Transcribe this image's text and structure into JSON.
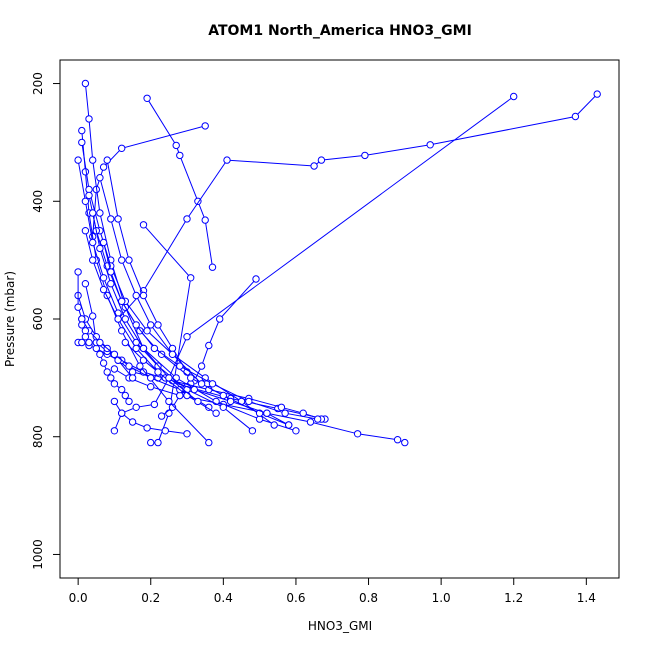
{
  "chart_data": {
    "type": "line",
    "title": "ATOM1 North_America HNO3_GMI",
    "xlabel": "HNO3_GMI",
    "ylabel": "Pressure (mbar)",
    "xlim": [
      -0.05,
      1.49
    ],
    "ylim": [
      1040,
      160
    ],
    "y_reversed": true,
    "x_ticks": [
      0.0,
      0.2,
      0.4,
      0.6,
      0.8,
      1.0,
      1.2,
      1.4
    ],
    "x_tick_labels": [
      "0.0",
      "0.2",
      "0.4",
      "0.6",
      "0.8",
      "1.0",
      "1.2",
      "1.4"
    ],
    "y_ticks": [
      200,
      400,
      600,
      800,
      1000
    ],
    "y_tick_labels": [
      "200",
      "400",
      "600",
      "800",
      "1000"
    ],
    "grid": false,
    "line_color": "#0000ff",
    "marker": "open-circle",
    "series": [
      {
        "x": [
          0.18,
          0.31,
          0.25,
          0.22,
          0.2
        ],
        "y": [
          440,
          530,
          760,
          810,
          810
        ]
      },
      {
        "x": [
          0.19,
          0.27,
          0.28,
          0.33,
          0.35,
          0.37
        ],
        "y": [
          225,
          305,
          322,
          400,
          432,
          512
        ]
      },
      {
        "x": [
          1.43,
          1.37,
          0.97,
          0.79,
          0.67,
          0.65,
          0.41,
          0.3,
          0.18,
          0.11
        ],
        "y": [
          218,
          256,
          304,
          322,
          330,
          340,
          330,
          430,
          552,
          600
        ]
      },
      {
        "x": [
          1.2,
          0.3,
          0.25,
          0.21,
          0.16,
          0.12,
          0.1
        ],
        "y": [
          222,
          630,
          700,
          745,
          750,
          760,
          790
        ]
      },
      {
        "x": [
          0.35,
          0.12,
          0.07,
          0.05,
          0.04
        ],
        "y": [
          272,
          310,
          342,
          380,
          460
        ]
      },
      {
        "x": [
          0.49,
          0.39,
          0.36,
          0.34,
          0.32,
          0.31,
          0.28,
          0.26,
          0.23
        ],
        "y": [
          532,
          600,
          645,
          680,
          705,
          710,
          730,
          750,
          765
        ]
      },
      {
        "x": [
          0.02,
          0.04,
          0.05,
          0.06,
          0.07,
          0.08,
          0.09,
          0.1,
          0.12,
          0.13,
          0.14
        ],
        "y": [
          540,
          595,
          640,
          660,
          675,
          690,
          700,
          710,
          720,
          730,
          740
        ]
      },
      {
        "x": [
          0.0,
          0.01,
          0.03,
          0.05,
          0.08,
          0.11,
          0.15,
          0.22,
          0.3,
          0.42,
          0.55,
          0.68
        ],
        "y": [
          640,
          640,
          645,
          650,
          660,
          670,
          690,
          700,
          715,
          735,
          752,
          770
        ]
      },
      {
        "x": [
          0.05,
          0.08,
          0.12,
          0.18,
          0.26,
          0.36,
          0.47,
          0.56,
          0.62,
          0.67
        ],
        "y": [
          640,
          655,
          670,
          690,
          705,
          720,
          735,
          750,
          760,
          770
        ]
      },
      {
        "x": [
          0.1,
          0.14,
          0.2,
          0.28,
          0.4,
          0.52,
          0.64,
          0.77,
          0.88,
          0.9
        ],
        "y": [
          685,
          700,
          715,
          730,
          745,
          760,
          775,
          795,
          805,
          810
        ]
      },
      {
        "x": [
          0.02,
          0.03,
          0.04,
          0.06,
          0.09,
          0.13,
          0.18,
          0.27,
          0.38,
          0.5,
          0.6
        ],
        "y": [
          200,
          260,
          330,
          420,
          500,
          580,
          650,
          700,
          740,
          770,
          790
        ]
      },
      {
        "x": [
          0.01,
          0.02,
          0.03,
          0.05,
          0.08,
          0.12,
          0.17,
          0.25,
          0.36
        ],
        "y": [
          280,
          350,
          420,
          500,
          560,
          620,
          680,
          740,
          810
        ]
      },
      {
        "x": [
          0.0,
          0.02,
          0.04,
          0.07,
          0.11,
          0.16,
          0.22,
          0.3,
          0.4,
          0.48
        ],
        "y": [
          330,
          400,
          470,
          530,
          590,
          640,
          680,
          720,
          750,
          790
        ]
      },
      {
        "x": [
          0.01,
          0.03,
          0.06,
          0.09,
          0.13,
          0.19,
          0.26,
          0.35,
          0.45,
          0.54
        ],
        "y": [
          300,
          380,
          450,
          510,
          570,
          620,
          660,
          700,
          740,
          780
        ]
      },
      {
        "x": [
          0.0,
          0.02,
          0.05,
          0.08,
          0.11,
          0.15
        ],
        "y": [
          560,
          600,
          630,
          650,
          670,
          700
        ]
      },
      {
        "x": [
          0.01,
          0.03,
          0.06,
          0.1,
          0.14,
          0.2,
          0.28,
          0.36
        ],
        "y": [
          600,
          620,
          640,
          660,
          680,
          700,
          720,
          750
        ]
      },
      {
        "x": [
          0.08,
          0.11,
          0.14,
          0.18,
          0.22,
          0.26,
          0.3
        ],
        "y": [
          330,
          430,
          500,
          560,
          610,
          650,
          690
        ]
      },
      {
        "x": [
          0.0,
          0.0,
          0.01,
          0.01,
          0.02,
          0.02,
          0.03
        ],
        "y": [
          520,
          580,
          600,
          610,
          620,
          630,
          640
        ]
      },
      {
        "x": [
          0.03,
          0.05,
          0.08,
          0.12,
          0.17,
          0.23,
          0.31,
          0.4,
          0.5,
          0.58
        ],
        "y": [
          390,
          450,
          510,
          570,
          620,
          660,
          700,
          730,
          760,
          780
        ]
      },
      {
        "x": [
          0.07,
          0.09,
          0.12,
          0.16,
          0.21,
          0.28,
          0.37,
          0.47,
          0.57,
          0.66
        ],
        "y": [
          470,
          520,
          570,
          610,
          650,
          680,
          710,
          740,
          760,
          770
        ]
      },
      {
        "x": [
          0.13,
          0.18,
          0.24,
          0.32,
          0.42,
          0.52,
          0.58
        ],
        "y": [
          640,
          670,
          700,
          720,
          740,
          760,
          780
        ]
      },
      {
        "x": [
          0.1,
          0.12,
          0.15,
          0.19,
          0.24,
          0.3
        ],
        "y": [
          740,
          760,
          775,
          785,
          790,
          795
        ]
      },
      {
        "x": [
          0.02,
          0.04,
          0.07,
          0.11,
          0.16,
          0.22,
          0.3,
          0.38
        ],
        "y": [
          450,
          500,
          550,
          600,
          650,
          690,
          730,
          760
        ]
      },
      {
        "x": [
          0.04,
          0.06,
          0.09,
          0.13,
          0.18,
          0.25,
          0.33
        ],
        "y": [
          420,
          480,
          540,
          600,
          650,
          700,
          740
        ]
      },
      {
        "x": [
          0.06,
          0.09,
          0.12,
          0.16,
          0.2,
          0.26,
          0.34
        ],
        "y": [
          360,
          430,
          500,
          560,
          610,
          660,
          710
        ]
      }
    ]
  }
}
